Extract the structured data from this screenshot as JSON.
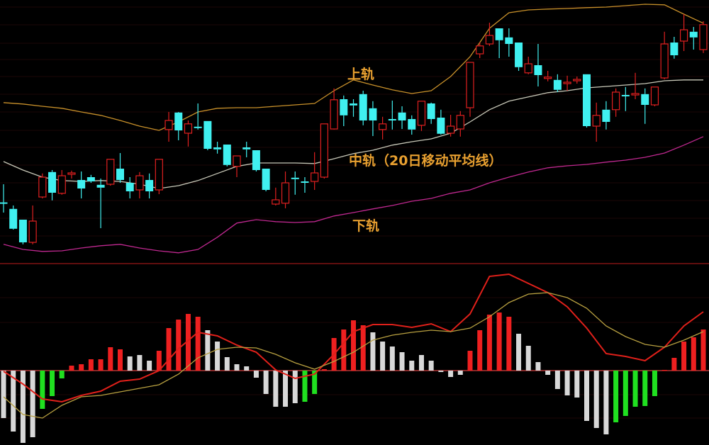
{
  "chart_data": [
    {
      "type": "candlestick",
      "title": "",
      "xlabel": "",
      "ylabel": "",
      "ylim": [
        10,
        100
      ],
      "grid": true,
      "colors": {
        "up": "#e02020",
        "down": "#40f0f0",
        "upper_band": "#c8902a",
        "middle_band": "#c8c8b8",
        "lower_band": "#c02890"
      },
      "candles_ohlc": [
        [
          28.6,
          28.4,
          35,
          25
        ],
        [
          26.3,
          19.3,
          27.5,
          19
        ],
        [
          22.5,
          14.5,
          22.5,
          13.8
        ],
        [
          14.5,
          22,
          27.5,
          13.8
        ],
        [
          30.5,
          37.5,
          38.8,
          30
        ],
        [
          39.3,
          32,
          40,
          29.3
        ],
        [
          31.8,
          38,
          40,
          31.3
        ],
        [
          38.5,
          39,
          39.8,
          37
        ],
        [
          36.5,
          33.5,
          39.5,
          30
        ],
        [
          37.5,
          36,
          38.3,
          35.5
        ],
        [
          34.8,
          33.8,
          37,
          19.5
        ],
        [
          35,
          43.8,
          43.8,
          34.5
        ],
        [
          40.5,
          36.5,
          46,
          35.5
        ],
        [
          35.5,
          32.5,
          37.5,
          30
        ],
        [
          33,
          38,
          39.3,
          30
        ],
        [
          36.5,
          32.5,
          38.8,
          30
        ],
        [
          33,
          43.8,
          43.8,
          31.5
        ],
        [
          54.3,
          57.5,
          60.5,
          50
        ],
        [
          60.3,
          54,
          60.5,
          50.5
        ],
        [
          53,
          56.3,
          57.5,
          48.3
        ],
        [
          55.3,
          54.8,
          63.5,
          54.3
        ],
        [
          57.3,
          47.5,
          57.3,
          47
        ],
        [
          48,
          47.3,
          50,
          45.8
        ],
        [
          49,
          41.8,
          49,
          41.3
        ],
        [
          41.3,
          45,
          45,
          37.5
        ],
        [
          48,
          47.3,
          50,
          44.5
        ],
        [
          47,
          40,
          47,
          39.5
        ],
        [
          40.5,
          33,
          40.5,
          32.5
        ],
        [
          28,
          29.5,
          33.8,
          27.5
        ],
        [
          28.3,
          35.5,
          39.5,
          26.5
        ],
        [
          37.3,
          36.8,
          39.5,
          31.3
        ],
        [
          36,
          35.5,
          37.5,
          32
        ],
        [
          36,
          39,
          46.3,
          33
        ],
        [
          37.5,
          56.3,
          56.3,
          37
        ],
        [
          54.5,
          64.8,
          68.8,
          54.3
        ],
        [
          65,
          59.3,
          66.3,
          55.5
        ],
        [
          63.5,
          62.8,
          65,
          58.8
        ],
        [
          66.8,
          57.5,
          68,
          55.8
        ],
        [
          61.8,
          57.5,
          64.3,
          52
        ],
        [
          54.3,
          56.3,
          58.8,
          50.8
        ],
        [
          58,
          57.5,
          64.5,
          54.3
        ],
        [
          60.3,
          57.5,
          62.5,
          54.5
        ],
        [
          58,
          54.3,
          59.3,
          52.5
        ],
        [
          55.8,
          64.3,
          64.3,
          53.8
        ],
        [
          63.5,
          58,
          63.8,
          56.3
        ],
        [
          58.5,
          52.8,
          61.3,
          52.5
        ],
        [
          53,
          55.5,
          59.5,
          51.8
        ],
        [
          54.5,
          59.3,
          60.8,
          51.8
        ],
        [
          62,
          78,
          78,
          58.8
        ],
        [
          81,
          83.8,
          85,
          79.5
        ],
        [
          84.5,
          87.5,
          92,
          83.8
        ],
        [
          90,
          85.8,
          90,
          79.5
        ],
        [
          86.8,
          84.5,
          90,
          80
        ],
        [
          85,
          76.3,
          85,
          75
        ],
        [
          74.3,
          77.5,
          80,
          73.8
        ],
        [
          77,
          73.5,
          84.5,
          69.5
        ],
        [
          72.3,
          72.8,
          75,
          71.3
        ],
        [
          71.8,
          68.3,
          73.8,
          67.5
        ],
        [
          70.5,
          71,
          73.3,
          68
        ],
        [
          71.5,
          72,
          73,
          70.5
        ],
        [
          73.8,
          55.5,
          73.8,
          55
        ],
        [
          55.5,
          59.3,
          63.8,
          50
        ],
        [
          61.3,
          57,
          64.3,
          54.3
        ],
        [
          61.3,
          67.5,
          68.8,
          58.8
        ],
        [
          66.5,
          66,
          69.3,
          60.8
        ],
        [
          66.5,
          67,
          74.3,
          65
        ],
        [
          66.8,
          63,
          68.8,
          56.3
        ],
        [
          63,
          69.3,
          69.3,
          62.5
        ],
        [
          72.5,
          84.5,
          88.8,
          72
        ],
        [
          85,
          80.5,
          87,
          79.3
        ],
        [
          85.5,
          89.5,
          95,
          82
        ],
        [
          88.8,
          86.8,
          90.5,
          82.5
        ],
        [
          82.5,
          91.3,
          92.5,
          81.3
        ]
      ],
      "band_sample_index": [
        0,
        2,
        4,
        6,
        8,
        10,
        12,
        14,
        16,
        18,
        20,
        22,
        24,
        26,
        28,
        30,
        32,
        34,
        36,
        38,
        40,
        42,
        44,
        46,
        48,
        50,
        52,
        54,
        56,
        58,
        60,
        62,
        64,
        66,
        68,
        70,
        72
      ],
      "series": [
        {
          "name": "上轨",
          "values": [
            63.8,
            63.3,
            62.5,
            61.8,
            60.5,
            59.3,
            57.5,
            55.5,
            54,
            57,
            60.5,
            61.8,
            62,
            62,
            62.5,
            63,
            63.5,
            68,
            71.8,
            70,
            68.3,
            67,
            68,
            73,
            80,
            90,
            95.5,
            96.5,
            96.8,
            97,
            97.3,
            97.5,
            98,
            98.5,
            98.3,
            95,
            91.8
          ]
        },
        {
          "name": "中轨（20日移动平均线）",
          "values": [
            43,
            40,
            37.5,
            36.3,
            36,
            36.3,
            36,
            35,
            33.5,
            34.5,
            36.3,
            38.8,
            41.3,
            42.5,
            42.5,
            42.5,
            42.3,
            44,
            45.8,
            47,
            48.8,
            50,
            51,
            53,
            57,
            61.3,
            64.3,
            65.8,
            67.3,
            68,
            69,
            69.5,
            70,
            70.5,
            71.5,
            71.8,
            71.8
          ]
        },
        {
          "name": "下轨",
          "values": [
            13.8,
            12,
            11.3,
            11.5,
            12.5,
            13.3,
            13.8,
            12.5,
            11.5,
            10.8,
            12,
            16.3,
            21.3,
            22.5,
            21.8,
            21.5,
            21.8,
            23.8,
            25,
            26.3,
            27.5,
            29,
            30,
            31.8,
            33,
            35.5,
            37.5,
            39.3,
            40.8,
            41.5,
            42,
            42.8,
            43.5,
            44.5,
            46,
            48.8,
            51.8
          ]
        }
      ]
    },
    {
      "type": "bar+line",
      "title": "",
      "ylim": [
        -10.5,
        14.8
      ],
      "zero_line": true,
      "colors": {
        "red": "#ee2020",
        "white": "#d8d8d8",
        "green": "#20e020",
        "dif": "#e0201a",
        "dea": "#b8a040"
      },
      "histogram": [
        -6.7,
        -8.6,
        -10.2,
        -9.4,
        -5.4,
        -3.6,
        -1.1,
        0.7,
        0.9,
        1.6,
        1.6,
        3.3,
        3.0,
        2.0,
        2.2,
        1.4,
        2.8,
        6.0,
        7.2,
        8.0,
        7.6,
        5.7,
        4.1,
        1.9,
        0.9,
        0.6,
        -1.0,
        -3.3,
        -5.1,
        -5.1,
        -4.6,
        -4.4,
        -3.3,
        0.2,
        4.6,
        5.8,
        7.1,
        6.4,
        5.4,
        4.1,
        3.4,
        2.6,
        1.4,
        2.2,
        1.4,
        -0.2,
        -0.9,
        -0.6,
        2.8,
        5.7,
        7.9,
        8.2,
        7.6,
        5.2,
        3.5,
        1.2,
        -0.6,
        -2.6,
        -3.5,
        -3.8,
        -7.1,
        -8.1,
        -9.0,
        -7.3,
        -6.4,
        -5.1,
        -5.0,
        -3.6,
        0.1,
        1.8,
        4.1,
        4.7,
        5.8
      ],
      "histogram_colors": [
        "white",
        "white",
        "white",
        "white",
        "green",
        "green",
        "green",
        "red",
        "red",
        "red",
        "red",
        "red",
        "red",
        "white",
        "white",
        "white",
        "red",
        "red",
        "red",
        "red",
        "red",
        "white",
        "white",
        "white",
        "white",
        "white",
        "white",
        "white",
        "white",
        "white",
        "white",
        "green",
        "green",
        "red",
        "red",
        "red",
        "red",
        "red",
        "white",
        "white",
        "white",
        "white",
        "white",
        "white",
        "white",
        "white",
        "white",
        "white",
        "red",
        "red",
        "red",
        "red",
        "red",
        "white",
        "white",
        "white",
        "white",
        "white",
        "white",
        "white",
        "white",
        "white",
        "white",
        "green",
        "green",
        "green",
        "green",
        "green",
        "red",
        "red",
        "red",
        "red",
        "red"
      ],
      "line_sample_index": [
        0,
        2,
        4,
        6,
        8,
        10,
        12,
        14,
        16,
        18,
        20,
        22,
        24,
        26,
        28,
        30,
        32,
        34,
        36,
        38,
        40,
        42,
        44,
        46,
        48,
        50,
        52,
        54,
        56,
        58,
        60,
        62,
        64,
        66,
        68,
        70,
        72
      ],
      "series": [
        {
          "values": [
            -0.1,
            -1.9,
            -4.0,
            -4.4,
            -3.5,
            -2.9,
            -1.5,
            -1.2,
            0,
            3.1,
            5.4,
            4.9,
            3.6,
            2.6,
            0.1,
            -1.1,
            -0.5,
            2.3,
            5.5,
            6.5,
            6.5,
            6.1,
            6.6,
            5.5,
            8.0,
            13.3,
            13.6,
            12.3,
            11.0,
            9.0,
            6.0,
            2.4,
            2.0,
            1.4,
            3.3,
            6.3,
            8.3
          ]
        },
        {
          "values": [
            -3.7,
            -6.2,
            -6.7,
            -4.9,
            -3.7,
            -3.5,
            -3.0,
            -2.5,
            -2.0,
            -0.5,
            1.8,
            3.0,
            3.3,
            3.2,
            2.3,
            1.1,
            0.2,
            1.3,
            2.6,
            4.3,
            5.0,
            5.4,
            5.7,
            5.5,
            6.0,
            7.6,
            9.6,
            10.8,
            11.0,
            10.3,
            8.8,
            6.3,
            4.8,
            3.7,
            3.3,
            4.3,
            5.5
          ]
        }
      ]
    }
  ],
  "annotations": {
    "upper": "上轨",
    "middle": "中轨（20日移动平均线）",
    "lower": "下轨"
  }
}
